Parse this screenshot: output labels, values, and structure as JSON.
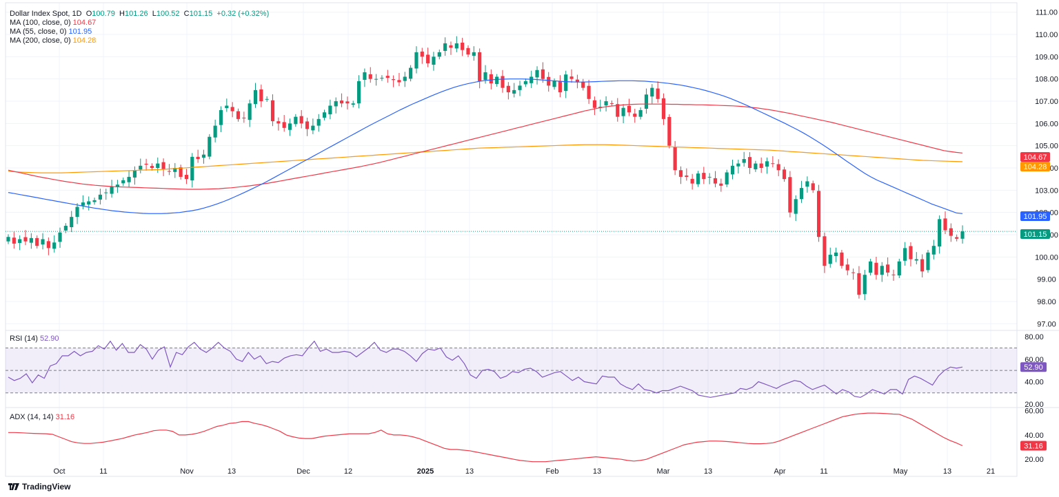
{
  "legend": {
    "symbol": "Dollar Index Spot, 1D",
    "o_label": "O",
    "o_value": "100.79",
    "h_label": "H",
    "h_value": "101.26",
    "l_label": "L",
    "l_value": "100.52",
    "c_label": "C",
    "c_value": "101.15",
    "change": "+0.32 (+0.32%)",
    "ma100_label": "MA (100, close, 0)",
    "ma100_value": "104.67",
    "ma55_label": "MA (55, close, 0)",
    "ma55_value": "101.95",
    "ma200_label": "MA (200, close, 0)",
    "ma200_value": "104.28",
    "rsi_label": "RSI (14)",
    "rsi_value": "52.90",
    "adx_label": "ADX (14, 14)",
    "adx_value": "31.16"
  },
  "brand": "TradingView",
  "colors": {
    "up": "#089981",
    "down": "#f23645",
    "ma100": "#f23645",
    "ma55": "#2962ff",
    "ma200": "#ff9800",
    "rsi": "#7e57c2",
    "adx": "#f23645"
  },
  "chart_data": [
    {
      "type": "candlestick",
      "title": "Dollar Index Spot, 1D",
      "ylim": [
        96.7,
        111.3
      ],
      "y_ticks": [
        "111.00",
        "110.00",
        "109.00",
        "108.00",
        "107.00",
        "106.00",
        "105.00",
        "104.00",
        "103.00",
        "102.00",
        "101.00",
        "100.00",
        "99.00",
        "98.00",
        "97.00"
      ],
      "x_ticks": [
        "Oct",
        "11",
        "Nov",
        "13",
        "Dec",
        "12",
        "2025",
        "13",
        "Feb",
        "13",
        "Mar",
        "13",
        "Apr",
        "11",
        "May",
        "13",
        "21"
      ],
      "last_close": 101.15,
      "price_tags": [
        {
          "label": "104.67",
          "value": 104.67,
          "color": "#f23645"
        },
        {
          "label": "104.28",
          "value": 104.28,
          "color": "#ff9800"
        },
        {
          "label": "101.95",
          "value": 101.95,
          "color": "#2962ff"
        },
        {
          "label": "101.15",
          "value": 101.15,
          "color": "#089981"
        }
      ],
      "closes": [
        100.9,
        100.6,
        100.8,
        100.7,
        100.85,
        100.5,
        100.8,
        100.4,
        100.65,
        101.1,
        101.4,
        101.8,
        102.25,
        102.45,
        102.5,
        102.55,
        102.8,
        102.9,
        103.15,
        103.25,
        103.45,
        103.6,
        103.9,
        104.1,
        104.15,
        104.0,
        104.2,
        103.95,
        103.85,
        104.0,
        103.6,
        103.5,
        104.5,
        104.4,
        104.6,
        105.4,
        105.9,
        106.6,
        106.8,
        106.55,
        106.2,
        106.25,
        106.9,
        107.5,
        107.0,
        107.1,
        106.1,
        106.0,
        105.8,
        106.0,
        106.3,
        106.0,
        105.75,
        105.9,
        106.2,
        106.5,
        106.8,
        107.0,
        106.9,
        106.9,
        106.9,
        107.9,
        108.3,
        108.0,
        108.0,
        108.05,
        108.05,
        107.95,
        107.85,
        108.1,
        108.5,
        109.2,
        109.0,
        108.7,
        109.0,
        109.2,
        109.6,
        109.4,
        109.6,
        109.3,
        109.1,
        109.2,
        107.9,
        108.3,
        107.8,
        108.1,
        107.6,
        107.4,
        107.5,
        107.7,
        107.9,
        108.1,
        108.4,
        108.0,
        107.7,
        107.9,
        107.4,
        108.2,
        108.0,
        107.85,
        107.6,
        107.1,
        106.7,
        106.75,
        107.0,
        106.9,
        106.3,
        106.7,
        106.5,
        106.3,
        106.6,
        107.3,
        107.6,
        107.1,
        106.2,
        105.0,
        103.9,
        103.6,
        103.6,
        103.3,
        103.75,
        103.5,
        103.6,
        103.3,
        103.2,
        103.8,
        104.1,
        104.2,
        104.4,
        104.0,
        104.2,
        104.0,
        104.3,
        104.2,
        103.9,
        103.5,
        102.0,
        102.6,
        103.1,
        103.4,
        103.0,
        100.9,
        99.6,
        100.1,
        100.2,
        99.6,
        99.4,
        99.3,
        98.3,
        99.2,
        99.8,
        99.2,
        99.6,
        99.3,
        99.2,
        99.8,
        100.4,
        99.9,
        99.9,
        99.35,
        100.2,
        100.5,
        101.7,
        101.2,
        100.95,
        100.82,
        101.15
      ],
      "ma55": [
        102.9,
        102.85,
        102.8,
        102.75,
        102.7,
        102.65,
        102.6,
        102.55,
        102.5,
        102.45,
        102.4,
        102.35,
        102.3,
        102.25,
        102.2,
        102.16,
        102.12,
        102.08,
        102.05,
        102.02,
        102.0,
        101.98,
        101.96,
        101.95,
        101.95,
        101.95,
        101.96,
        101.98,
        102.0,
        102.04,
        102.08,
        102.13,
        102.2,
        102.28,
        102.37,
        102.47,
        102.58,
        102.7,
        102.82,
        102.95,
        103.08,
        103.21,
        103.35,
        103.5,
        103.65,
        103.8,
        103.95,
        104.1,
        104.25,
        104.4,
        104.55,
        104.7,
        104.85,
        105.0,
        105.15,
        105.3,
        105.45,
        105.6,
        105.75,
        105.9,
        106.04,
        106.18,
        106.32,
        106.46,
        106.6,
        106.73,
        106.86,
        106.98,
        107.1,
        107.22,
        107.33,
        107.44,
        107.54,
        107.63,
        107.71,
        107.78,
        107.84,
        107.89,
        107.93,
        107.96,
        107.98,
        107.99,
        108.0,
        108.0,
        108.0,
        107.99,
        107.98,
        107.96,
        107.94,
        107.92,
        107.9,
        107.88,
        107.87,
        107.86,
        107.86,
        107.87,
        107.88,
        107.89,
        107.9,
        107.91,
        107.92,
        107.92,
        107.92,
        107.91,
        107.9,
        107.88,
        107.86,
        107.83,
        107.8,
        107.76,
        107.72,
        107.67,
        107.61,
        107.55,
        107.48,
        107.4,
        107.32,
        107.23,
        107.13,
        107.02,
        106.9,
        106.78,
        106.65,
        106.52,
        106.39,
        106.26,
        106.13,
        106.0,
        105.86,
        105.72,
        105.57,
        105.41,
        105.24,
        105.07,
        104.89,
        104.7,
        104.51,
        104.32,
        104.13,
        103.94,
        103.76,
        103.6,
        103.46,
        103.34,
        103.22,
        103.1,
        102.98,
        102.86,
        102.74,
        102.62,
        102.5,
        102.38,
        102.28,
        102.18,
        102.08,
        101.98,
        101.95
      ],
      "ma100": [
        103.9,
        103.84,
        103.78,
        103.72,
        103.66,
        103.6,
        103.55,
        103.5,
        103.45,
        103.4,
        103.36,
        103.32,
        103.28,
        103.25,
        103.22,
        103.2,
        103.18,
        103.16,
        103.15,
        103.14,
        103.13,
        103.12,
        103.11,
        103.1,
        103.09,
        103.08,
        103.07,
        103.06,
        103.05,
        103.04,
        103.04,
        103.04,
        103.05,
        103.06,
        103.07,
        103.09,
        103.11,
        103.14,
        103.17,
        103.2,
        103.24,
        103.28,
        103.32,
        103.37,
        103.42,
        103.47,
        103.52,
        103.57,
        103.62,
        103.67,
        103.72,
        103.77,
        103.82,
        103.87,
        103.92,
        103.97,
        104.02,
        104.07,
        104.13,
        104.19,
        104.25,
        104.32,
        104.39,
        104.46,
        104.53,
        104.6,
        104.67,
        104.74,
        104.81,
        104.88,
        104.95,
        105.02,
        105.09,
        105.16,
        105.23,
        105.3,
        105.37,
        105.44,
        105.51,
        105.58,
        105.65,
        105.72,
        105.79,
        105.86,
        105.93,
        106.0,
        106.07,
        106.14,
        106.21,
        106.28,
        106.35,
        106.42,
        106.49,
        106.56,
        106.62,
        106.68,
        106.73,
        106.77,
        106.8,
        106.83,
        106.85,
        106.86,
        106.87,
        106.87,
        106.87,
        106.87,
        106.87,
        106.86,
        106.86,
        106.85,
        106.85,
        106.84,
        106.84,
        106.83,
        106.82,
        106.81,
        106.8,
        106.79,
        106.77,
        106.75,
        106.72,
        106.69,
        106.65,
        106.61,
        106.56,
        106.51,
        106.46,
        106.4,
        106.34,
        106.28,
        106.22,
        106.16,
        106.1,
        106.04,
        105.97,
        105.9,
        105.83,
        105.76,
        105.69,
        105.62,
        105.55,
        105.48,
        105.41,
        105.34,
        105.27,
        105.2,
        105.13,
        105.06,
        104.99,
        104.92,
        104.85,
        104.78,
        104.74,
        104.7,
        104.67
      ],
      "ma200": [
        103.85,
        103.83,
        103.81,
        103.8,
        103.79,
        103.78,
        103.78,
        103.78,
        103.78,
        103.79,
        103.8,
        103.81,
        103.82,
        103.83,
        103.84,
        103.85,
        103.86,
        103.87,
        103.88,
        103.89,
        103.9,
        103.91,
        103.92,
        103.93,
        103.95,
        103.97,
        103.99,
        104.01,
        104.03,
        104.05,
        104.07,
        104.09,
        104.11,
        104.13,
        104.15,
        104.17,
        104.19,
        104.21,
        104.23,
        104.25,
        104.27,
        104.29,
        104.31,
        104.33,
        104.35,
        104.37,
        104.39,
        104.41,
        104.43,
        104.45,
        104.47,
        104.49,
        104.51,
        104.53,
        104.55,
        104.57,
        104.59,
        104.61,
        104.63,
        104.65,
        104.67,
        104.69,
        104.71,
        104.73,
        104.75,
        104.77,
        104.79,
        104.81,
        104.83,
        104.85,
        104.87,
        104.89,
        104.9,
        104.91,
        104.92,
        104.93,
        104.94,
        104.95,
        104.96,
        104.97,
        104.98,
        104.99,
        105.0,
        105.01,
        105.02,
        105.03,
        105.04,
        105.05,
        105.05,
        105.05,
        105.05,
        105.04,
        105.03,
        105.02,
        105.01,
        105.0,
        104.99,
        104.98,
        104.97,
        104.96,
        104.95,
        104.94,
        104.93,
        104.92,
        104.91,
        104.9,
        104.89,
        104.88,
        104.87,
        104.86,
        104.85,
        104.84,
        104.83,
        104.82,
        104.81,
        104.8,
        104.78,
        104.76,
        104.74,
        104.72,
        104.7,
        104.68,
        104.66,
        104.64,
        104.62,
        104.6,
        104.58,
        104.56,
        104.54,
        104.52,
        104.5,
        104.48,
        104.46,
        104.44,
        104.42,
        104.4,
        104.38,
        104.36,
        104.34,
        104.33,
        104.32,
        104.31,
        104.3,
        104.29,
        104.28
      ]
    },
    {
      "type": "line",
      "title": "RSI (14)",
      "ylim": [
        17,
        85
      ],
      "y_ticks": [
        80.0,
        60.0,
        40.0,
        20.0
      ],
      "bands": [
        70,
        50,
        30
      ],
      "values": [
        44,
        41,
        43,
        47,
        39,
        46,
        43,
        54,
        56,
        63,
        63,
        67,
        63,
        66,
        67,
        72,
        69,
        76,
        68,
        74,
        66,
        66,
        73,
        69,
        60,
        68,
        71,
        53,
        66,
        64,
        71,
        75,
        69,
        66,
        70,
        75,
        70,
        67,
        60,
        58,
        66,
        60,
        63,
        56,
        58,
        57,
        61,
        63,
        64,
        63,
        70,
        76,
        67,
        69,
        66,
        66,
        67,
        66,
        62,
        66,
        70,
        75,
        68,
        66,
        69,
        69,
        67,
        63,
        58,
        65,
        69,
        68,
        70,
        62,
        59,
        63,
        56,
        46,
        43,
        50,
        51,
        49,
        43,
        45,
        49,
        48,
        51,
        52,
        49,
        44,
        46,
        48,
        49,
        45,
        41,
        44,
        40,
        39,
        38,
        45,
        44,
        44,
        38,
        35,
        33,
        38,
        33,
        32,
        30,
        32,
        32,
        34,
        36,
        34,
        32,
        28,
        27,
        26,
        27,
        28,
        29,
        30,
        34,
        33,
        35,
        40,
        38,
        36,
        34,
        37,
        39,
        41,
        40,
        36,
        33,
        35,
        37,
        33,
        29,
        33,
        31,
        27,
        26,
        29,
        33,
        31,
        29,
        33,
        33,
        29,
        42,
        45,
        43,
        40,
        37,
        45,
        50,
        53,
        52,
        53
      ]
    },
    {
      "type": "line",
      "title": "ADX (14, 14)",
      "ylim": [
        15,
        62
      ],
      "y_ticks": [
        60.0,
        40.0,
        20.0
      ],
      "values": [
        42,
        42,
        41.8,
        41.5,
        41.3,
        41.1,
        41,
        40.5,
        38.5,
        36.5,
        34.5,
        33.5,
        33,
        33,
        33.5,
        34,
        35,
        36,
        37,
        38.5,
        40,
        41,
        42,
        43.5,
        44,
        44,
        43,
        40,
        40,
        40.5,
        41.5,
        43,
        45,
        47,
        48,
        49.5,
        50,
        51,
        51,
        49.5,
        48.5,
        47,
        45,
        43,
        40,
        38.5,
        37.5,
        37,
        37,
        38,
        39,
        39.5,
        40,
        40.5,
        41,
        41,
        41,
        41,
        42,
        44,
        41,
        40,
        40,
        39.5,
        38.5,
        37,
        35,
        33,
        31,
        29,
        28,
        28,
        27.5,
        27,
        26,
        25,
        24,
        23,
        22,
        21,
        20,
        19,
        18.5,
        18,
        18,
        18,
        18.5,
        19,
        19.5,
        20,
        20.5,
        21,
        21.5,
        22,
        21.5,
        21,
        20.5,
        20,
        19,
        18.5,
        19,
        20,
        22,
        24,
        26,
        28,
        30,
        32,
        33,
        34,
        34.5,
        35,
        35,
        34.8,
        34.5,
        34,
        33.5,
        33,
        32.8,
        32.8,
        33,
        33.5,
        35,
        37,
        39,
        41,
        43,
        45,
        47,
        49,
        51,
        53,
        55,
        56,
        57,
        57.5,
        58,
        58,
        57.8,
        57.5,
        57.2,
        57,
        55,
        53,
        50,
        47,
        44,
        41,
        38,
        35.5,
        33.5,
        31.16
      ]
    }
  ]
}
